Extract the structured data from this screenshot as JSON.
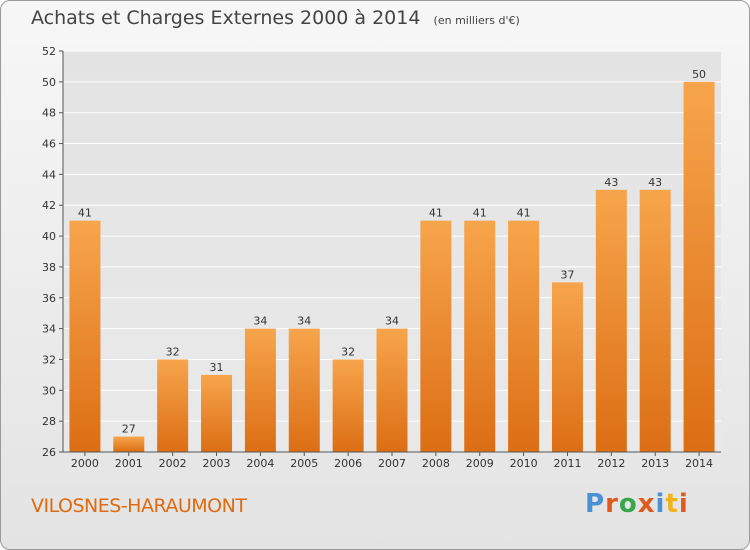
{
  "chart_data": {
    "type": "bar",
    "title": "Achats et Charges Externes 2000 à 2014",
    "subtitle": "(en milliers d'€)",
    "categories": [
      "2000",
      "2001",
      "2002",
      "2003",
      "2004",
      "2005",
      "2006",
      "2007",
      "2008",
      "2009",
      "2010",
      "2011",
      "2012",
      "2013",
      "2014"
    ],
    "values": [
      41,
      27,
      32,
      31,
      34,
      34,
      32,
      34,
      41,
      41,
      41,
      37,
      43,
      43,
      50
    ],
    "ylim": [
      26,
      52
    ],
    "yticks": [
      26,
      28,
      30,
      32,
      34,
      36,
      38,
      40,
      42,
      44,
      46,
      48,
      50,
      52
    ],
    "grid": true,
    "bar_color": "#f08a30",
    "xlabel": "",
    "ylabel": ""
  },
  "footer": {
    "commune": "VILOSNES-HARAUMONT",
    "logo_text": "Proxiti",
    "logo_colors": [
      "#4a90d6",
      "#e05a1e",
      "#3aa64a",
      "#e05a1e",
      "#4a90d6",
      "#f2b21c",
      "#e05a1e"
    ]
  },
  "colors": {
    "commune": "#e06a10",
    "grid": "#ffffff",
    "axis": "#555555"
  }
}
